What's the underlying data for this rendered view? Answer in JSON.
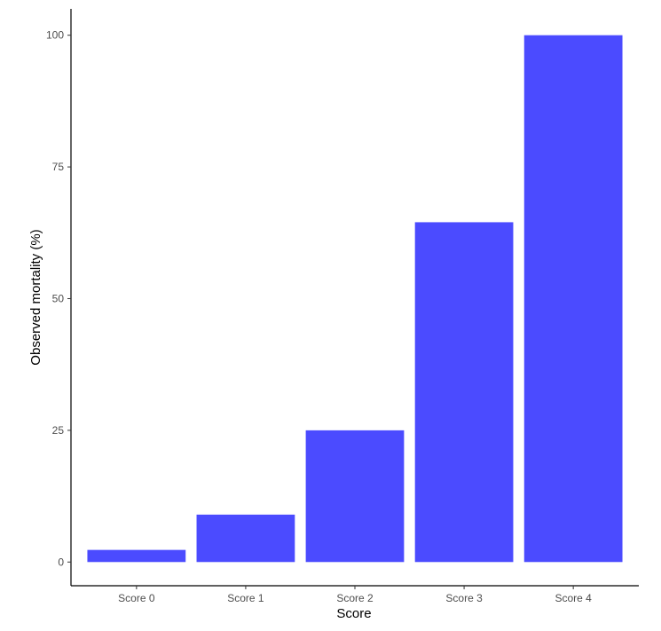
{
  "chart_data": {
    "type": "bar",
    "categories": [
      "Score 0",
      "Score 1",
      "Score 2",
      "Score 3",
      "Score 4"
    ],
    "values": [
      2.3,
      9,
      25,
      64.5,
      100
    ],
    "xlabel": "Score",
    "ylabel": "Observed mortality (%)",
    "ylim": [
      -4.5,
      105
    ],
    "yticks": [
      0,
      25,
      50,
      75,
      100
    ],
    "grid": false,
    "bar_color": "#4b4bff"
  }
}
